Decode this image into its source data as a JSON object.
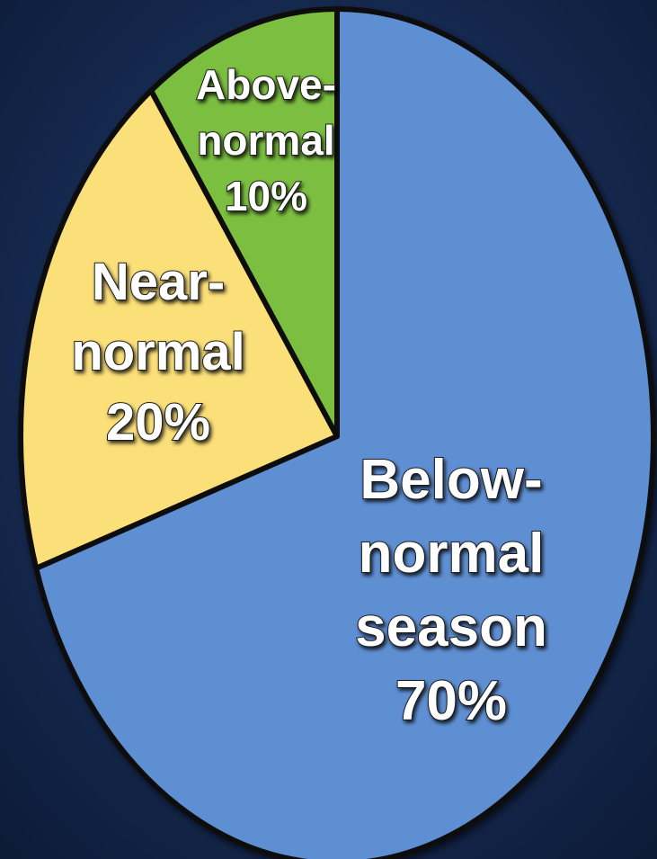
{
  "chart_data": {
    "type": "pie",
    "categories": [
      "Below-normal season",
      "Near-normal",
      "Above-normal"
    ],
    "values": [
      70,
      20,
      10
    ],
    "value_labels": [
      "70%",
      "20%",
      "10%"
    ],
    "colors": [
      "#5e8fd3",
      "#fbdf78",
      "#7bbf3f"
    ]
  }
}
